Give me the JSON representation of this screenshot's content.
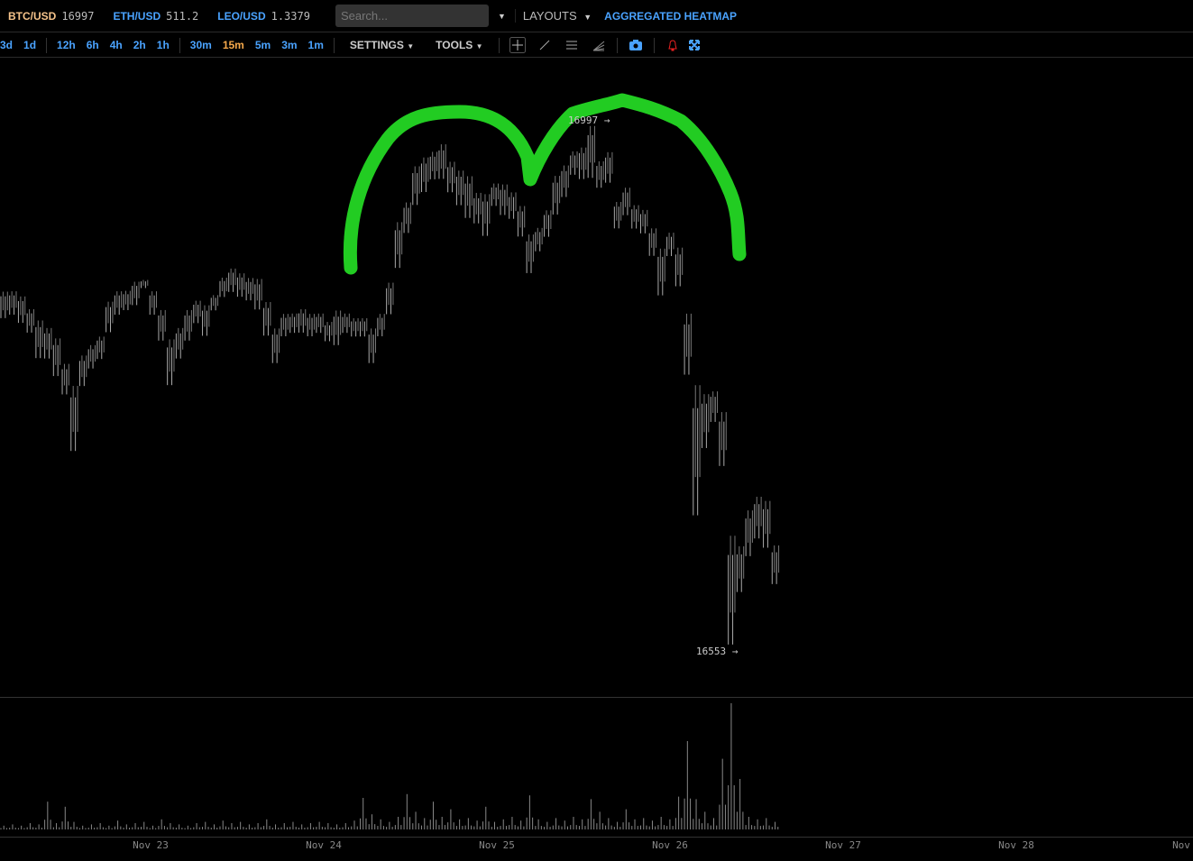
{
  "tickers": [
    {
      "symbol": "BTC/USD",
      "price": "16997",
      "color": "#f6c48b"
    },
    {
      "symbol": "ETH/USD",
      "price": "511.2",
      "color": "#4aa3ff"
    },
    {
      "symbol": "LEO/USD",
      "price": "1.3379",
      "color": "#4aa3ff"
    }
  ],
  "search": {
    "placeholder": "Search..."
  },
  "layouts_label": "LAYOUTS",
  "heatmap_label": "AGGREGATED HEATMAP",
  "timeframes": {
    "group1": [
      "3d",
      "1d"
    ],
    "group2": [
      "12h",
      "6h",
      "4h",
      "2h",
      "1h"
    ],
    "group3": [
      "30m",
      "15m",
      "5m",
      "3m",
      "1m"
    ],
    "active": "15m"
  },
  "settings_label": "SETTINGS",
  "tools_label": "TOOLS",
  "tool_icons": [
    "crosshair-icon",
    "trendline-icon",
    "horizontal-lines-icon",
    "fan-icon",
    "camera-icon",
    "alert-bell-icon",
    "fullscreen-icon"
  ],
  "chart_data": {
    "type": "candlestick",
    "price_range": [
      16553,
      16997
    ],
    "high_label": "16997 →",
    "low_label": "16553 →",
    "x_ticks": [
      "Nov 23",
      "Nov 24",
      "Nov 25",
      "Nov 26",
      "Nov 27",
      "Nov 28",
      "Nov"
    ],
    "candles": [
      [
        16856,
        16830
      ],
      [
        16856,
        16833
      ],
      [
        16852,
        16826
      ],
      [
        16841,
        16818
      ],
      [
        16833,
        16796
      ],
      [
        16826,
        16796
      ],
      [
        16818,
        16781
      ],
      [
        16796,
        16766
      ],
      [
        16781,
        16717
      ],
      [
        16803,
        16773
      ],
      [
        16811,
        16788
      ],
      [
        16818,
        16796
      ],
      [
        16848,
        16818
      ],
      [
        16856,
        16833
      ],
      [
        16856,
        16837
      ],
      [
        16864,
        16841
      ],
      [
        16864,
        16856
      ],
      [
        16856,
        16833
      ],
      [
        16841,
        16811
      ],
      [
        16818,
        16773
      ],
      [
        16826,
        16796
      ],
      [
        16841,
        16811
      ],
      [
        16848,
        16826
      ],
      [
        16845,
        16815
      ],
      [
        16852,
        16837
      ],
      [
        16867,
        16848
      ],
      [
        16875,
        16852
      ],
      [
        16871,
        16848
      ],
      [
        16867,
        16845
      ],
      [
        16867,
        16837
      ],
      [
        16848,
        16815
      ],
      [
        16826,
        16792
      ],
      [
        16837,
        16815
      ],
      [
        16837,
        16818
      ],
      [
        16841,
        16818
      ],
      [
        16837,
        16815
      ],
      [
        16837,
        16818
      ],
      [
        16830,
        16811
      ],
      [
        16841,
        16807
      ],
      [
        16837,
        16818
      ],
      [
        16833,
        16815
      ],
      [
        16833,
        16815
      ],
      [
        16826,
        16792
      ],
      [
        16837,
        16815
      ],
      [
        16864,
        16833
      ],
      [
        16916,
        16871
      ],
      [
        16931,
        16901
      ],
      [
        16962,
        16924
      ],
      [
        16969,
        16935
      ],
      [
        16973,
        16946
      ],
      [
        16980,
        16946
      ],
      [
        16965,
        16935
      ],
      [
        16958,
        16924
      ],
      [
        16954,
        16913
      ],
      [
        16939,
        16909
      ],
      [
        16939,
        16898
      ],
      [
        16946,
        16924
      ],
      [
        16946,
        16916
      ],
      [
        16939,
        16913
      ],
      [
        16928,
        16898
      ],
      [
        16905,
        16867
      ],
      [
        16909,
        16886
      ],
      [
        16924,
        16898
      ],
      [
        16954,
        16916
      ],
      [
        16962,
        16931
      ],
      [
        16973,
        16950
      ],
      [
        16977,
        16946
      ],
      [
        16997,
        16946
      ],
      [
        16965,
        16939
      ],
      [
        16973,
        16943
      ],
      [
        16931,
        16905
      ],
      [
        16943,
        16916
      ],
      [
        16928,
        16905
      ],
      [
        16924,
        16901
      ],
      [
        16909,
        16882
      ],
      [
        16894,
        16848
      ],
      [
        16905,
        16882
      ],
      [
        16894,
        16856
      ],
      [
        16841,
        16781
      ],
      [
        16788,
        16660
      ],
      [
        16773,
        16720
      ],
      [
        16773,
        16743
      ],
      [
        16758,
        16705
      ],
      [
        16660,
        16553
      ],
      [
        16645,
        16600
      ],
      [
        16675,
        16630
      ],
      [
        16686,
        16645
      ],
      [
        16683,
        16637
      ],
      [
        16645,
        16607
      ]
    ],
    "volume": [
      3,
      4,
      3,
      5,
      4,
      22,
      5,
      18,
      6,
      3,
      4,
      5,
      3,
      7,
      4,
      5,
      6,
      3,
      8,
      5,
      4,
      3,
      5,
      6,
      4,
      7,
      5,
      6,
      4,
      5,
      8,
      4,
      5,
      6,
      4,
      5,
      6,
      5,
      4,
      5,
      7,
      25,
      12,
      8,
      6,
      10,
      28,
      14,
      9,
      22,
      10,
      16,
      8,
      9,
      7,
      18,
      6,
      8,
      10,
      7,
      27,
      8,
      6,
      9,
      7,
      10,
      8,
      24,
      14,
      9,
      6,
      16,
      8,
      9,
      7,
      10,
      8,
      26,
      70,
      24,
      14,
      9,
      56,
      100,
      40,
      10,
      8,
      9,
      6
    ],
    "annotation_color": "#22cc22"
  }
}
